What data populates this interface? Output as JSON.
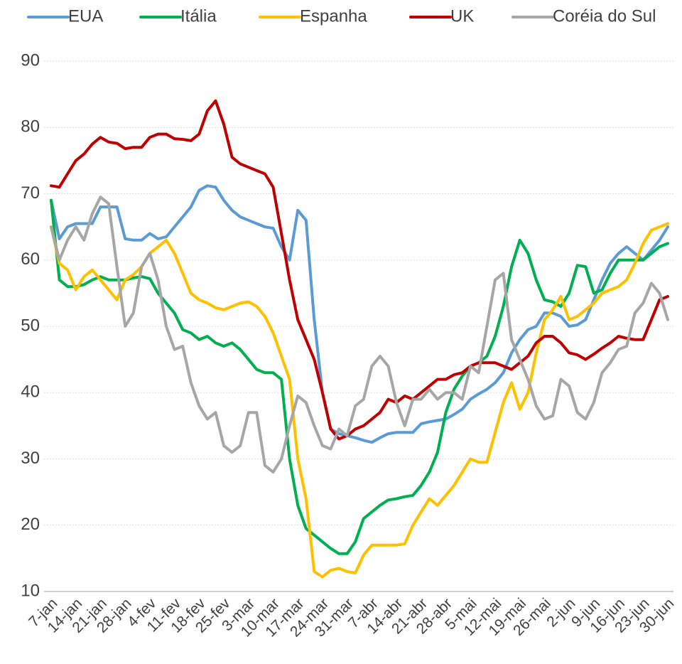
{
  "chart_data": {
    "type": "line",
    "categories": [
      "7-jan",
      null,
      null,
      "14-jan",
      null,
      null,
      "21-jan",
      null,
      null,
      "28-jan",
      null,
      null,
      "4-fev",
      null,
      null,
      "11-fev",
      null,
      null,
      "18-fev",
      null,
      null,
      "25-fev",
      null,
      null,
      "3-mar",
      null,
      null,
      "10-mar",
      null,
      null,
      "17-mar",
      null,
      null,
      "24-mar",
      null,
      null,
      "31-mar",
      null,
      null,
      "7-abr",
      null,
      null,
      "14-abr",
      null,
      null,
      "21-abr",
      null,
      null,
      "28-abr",
      null,
      null,
      "5-mai",
      null,
      null,
      "12-mai",
      null,
      null,
      "19-mai",
      null,
      null,
      "26-mai",
      null,
      null,
      "2-jun",
      null,
      null,
      "9-jun",
      null,
      null,
      "16-jun",
      null,
      null,
      "23-jun",
      null,
      null,
      "30-jun"
    ],
    "series": [
      {
        "name": "EUA",
        "color": "#5b9bd5",
        "values": [
          69,
          63.2,
          65,
          65.5,
          65.5,
          65.5,
          68,
          68,
          68,
          63.2,
          63,
          63,
          64,
          63.2,
          63.5,
          65,
          66.5,
          68,
          70.5,
          71.2,
          71,
          69,
          67.5,
          66.5,
          66,
          65.5,
          65,
          64.8,
          62,
          60,
          67.5,
          66,
          51,
          40,
          34.5,
          33.8,
          33.5,
          33.2,
          32.8,
          32.5,
          33.2,
          33.8,
          34,
          34,
          34,
          35.3,
          35.6,
          35.8,
          36,
          36.7,
          37.5,
          39,
          39.8,
          40.5,
          41.5,
          43,
          46,
          48,
          49.5,
          50,
          52,
          52,
          51.5,
          50,
          50.2,
          51,
          54,
          57,
          59.5,
          61,
          62,
          61,
          60,
          61.5,
          63,
          65
        ]
      },
      {
        "name": "Itália",
        "color": "#00b050",
        "values": [
          69,
          57,
          56,
          56,
          56.3,
          57,
          57.5,
          57,
          57,
          57,
          57.3,
          57.5,
          57.2,
          55,
          53.5,
          52,
          49.5,
          49,
          48,
          48.5,
          47.5,
          47,
          47.5,
          46.5,
          45,
          43.5,
          43,
          43,
          42,
          30,
          23,
          19.5,
          18.5,
          17.5,
          16.5,
          15.7,
          15.7,
          17.5,
          21,
          22,
          23,
          23.8,
          24,
          24.3,
          24.5,
          26,
          28,
          31,
          37,
          40.5,
          42.5,
          44,
          44.5,
          45.5,
          48.5,
          53,
          59,
          63,
          61,
          57,
          54,
          53.7,
          53,
          55,
          59.2,
          59,
          55,
          55.5,
          58,
          60,
          60,
          60,
          60,
          61,
          62,
          62.5
        ]
      },
      {
        "name": "Espanha",
        "color": "#ffc000",
        "values": [
          65,
          59.5,
          58.5,
          55.5,
          57.5,
          58.5,
          57,
          55.5,
          54,
          57,
          57.8,
          59,
          61,
          62,
          63,
          61,
          58,
          55,
          54,
          53.5,
          52.8,
          52.5,
          53,
          53.5,
          53.7,
          53,
          51.5,
          49,
          45.5,
          42,
          30,
          24,
          13,
          12.2,
          13.2,
          13.5,
          13,
          12.8,
          15.5,
          17,
          17,
          17,
          17,
          17.2,
          20,
          22,
          24,
          23,
          24.5,
          26,
          28,
          30,
          29.5,
          29.5,
          34,
          38.5,
          41.5,
          37.5,
          40,
          46,
          51,
          52.5,
          54.5,
          51,
          51.5,
          52.5,
          53.5,
          55,
          55.5,
          56,
          57,
          59.5,
          62.5,
          64.5,
          65,
          65.5
        ]
      },
      {
        "name": "UK",
        "color": "#c00000",
        "values": [
          71.2,
          71,
          73,
          75,
          76,
          77.5,
          78.5,
          77.8,
          77.6,
          76.8,
          77,
          77,
          78.5,
          79,
          79,
          78.3,
          78.2,
          78,
          79,
          82.5,
          84,
          80.5,
          75.5,
          74.5,
          74,
          73.5,
          73,
          71,
          64,
          57,
          51,
          48,
          45,
          40,
          34.5,
          33,
          33.5,
          34.5,
          35,
          36,
          37,
          39,
          38.5,
          39.5,
          39,
          40,
          41,
          42,
          42,
          42.7,
          43,
          44,
          44.5,
          44.5,
          44.5,
          44,
          43.5,
          44.5,
          45.5,
          47.5,
          48.5,
          48.5,
          47.5,
          46,
          45.7,
          45,
          45.8,
          46.7,
          47.5,
          48.5,
          48.2,
          48,
          48,
          51,
          54,
          54.5
        ]
      },
      {
        "name": "Coréia do Sul",
        "color": "#a6a6a6",
        "values": [
          65,
          60,
          63,
          65,
          63,
          67,
          69.5,
          68.5,
          59,
          50,
          52,
          59,
          61,
          57,
          50,
          46.5,
          47,
          41.5,
          38,
          36,
          37,
          32,
          31,
          32,
          37,
          37,
          29,
          28,
          30,
          35,
          39.5,
          38.5,
          35,
          32,
          31.5,
          34.5,
          33.5,
          38,
          39,
          44,
          45.5,
          44,
          38.5,
          35,
          39,
          39,
          40.5,
          39,
          40,
          40,
          39,
          44,
          43,
          50,
          57,
          58,
          48,
          45,
          42,
          38,
          36,
          36.5,
          42,
          41,
          37,
          36,
          38.5,
          43,
          44.5,
          46.5,
          47,
          52,
          53.5,
          56.5,
          55,
          51
        ]
      }
    ],
    "ylim": [
      10,
      90
    ],
    "yticks": [
      10,
      20,
      30,
      40,
      50,
      60,
      70,
      80,
      90
    ],
    "grid": true,
    "legend": "top"
  }
}
